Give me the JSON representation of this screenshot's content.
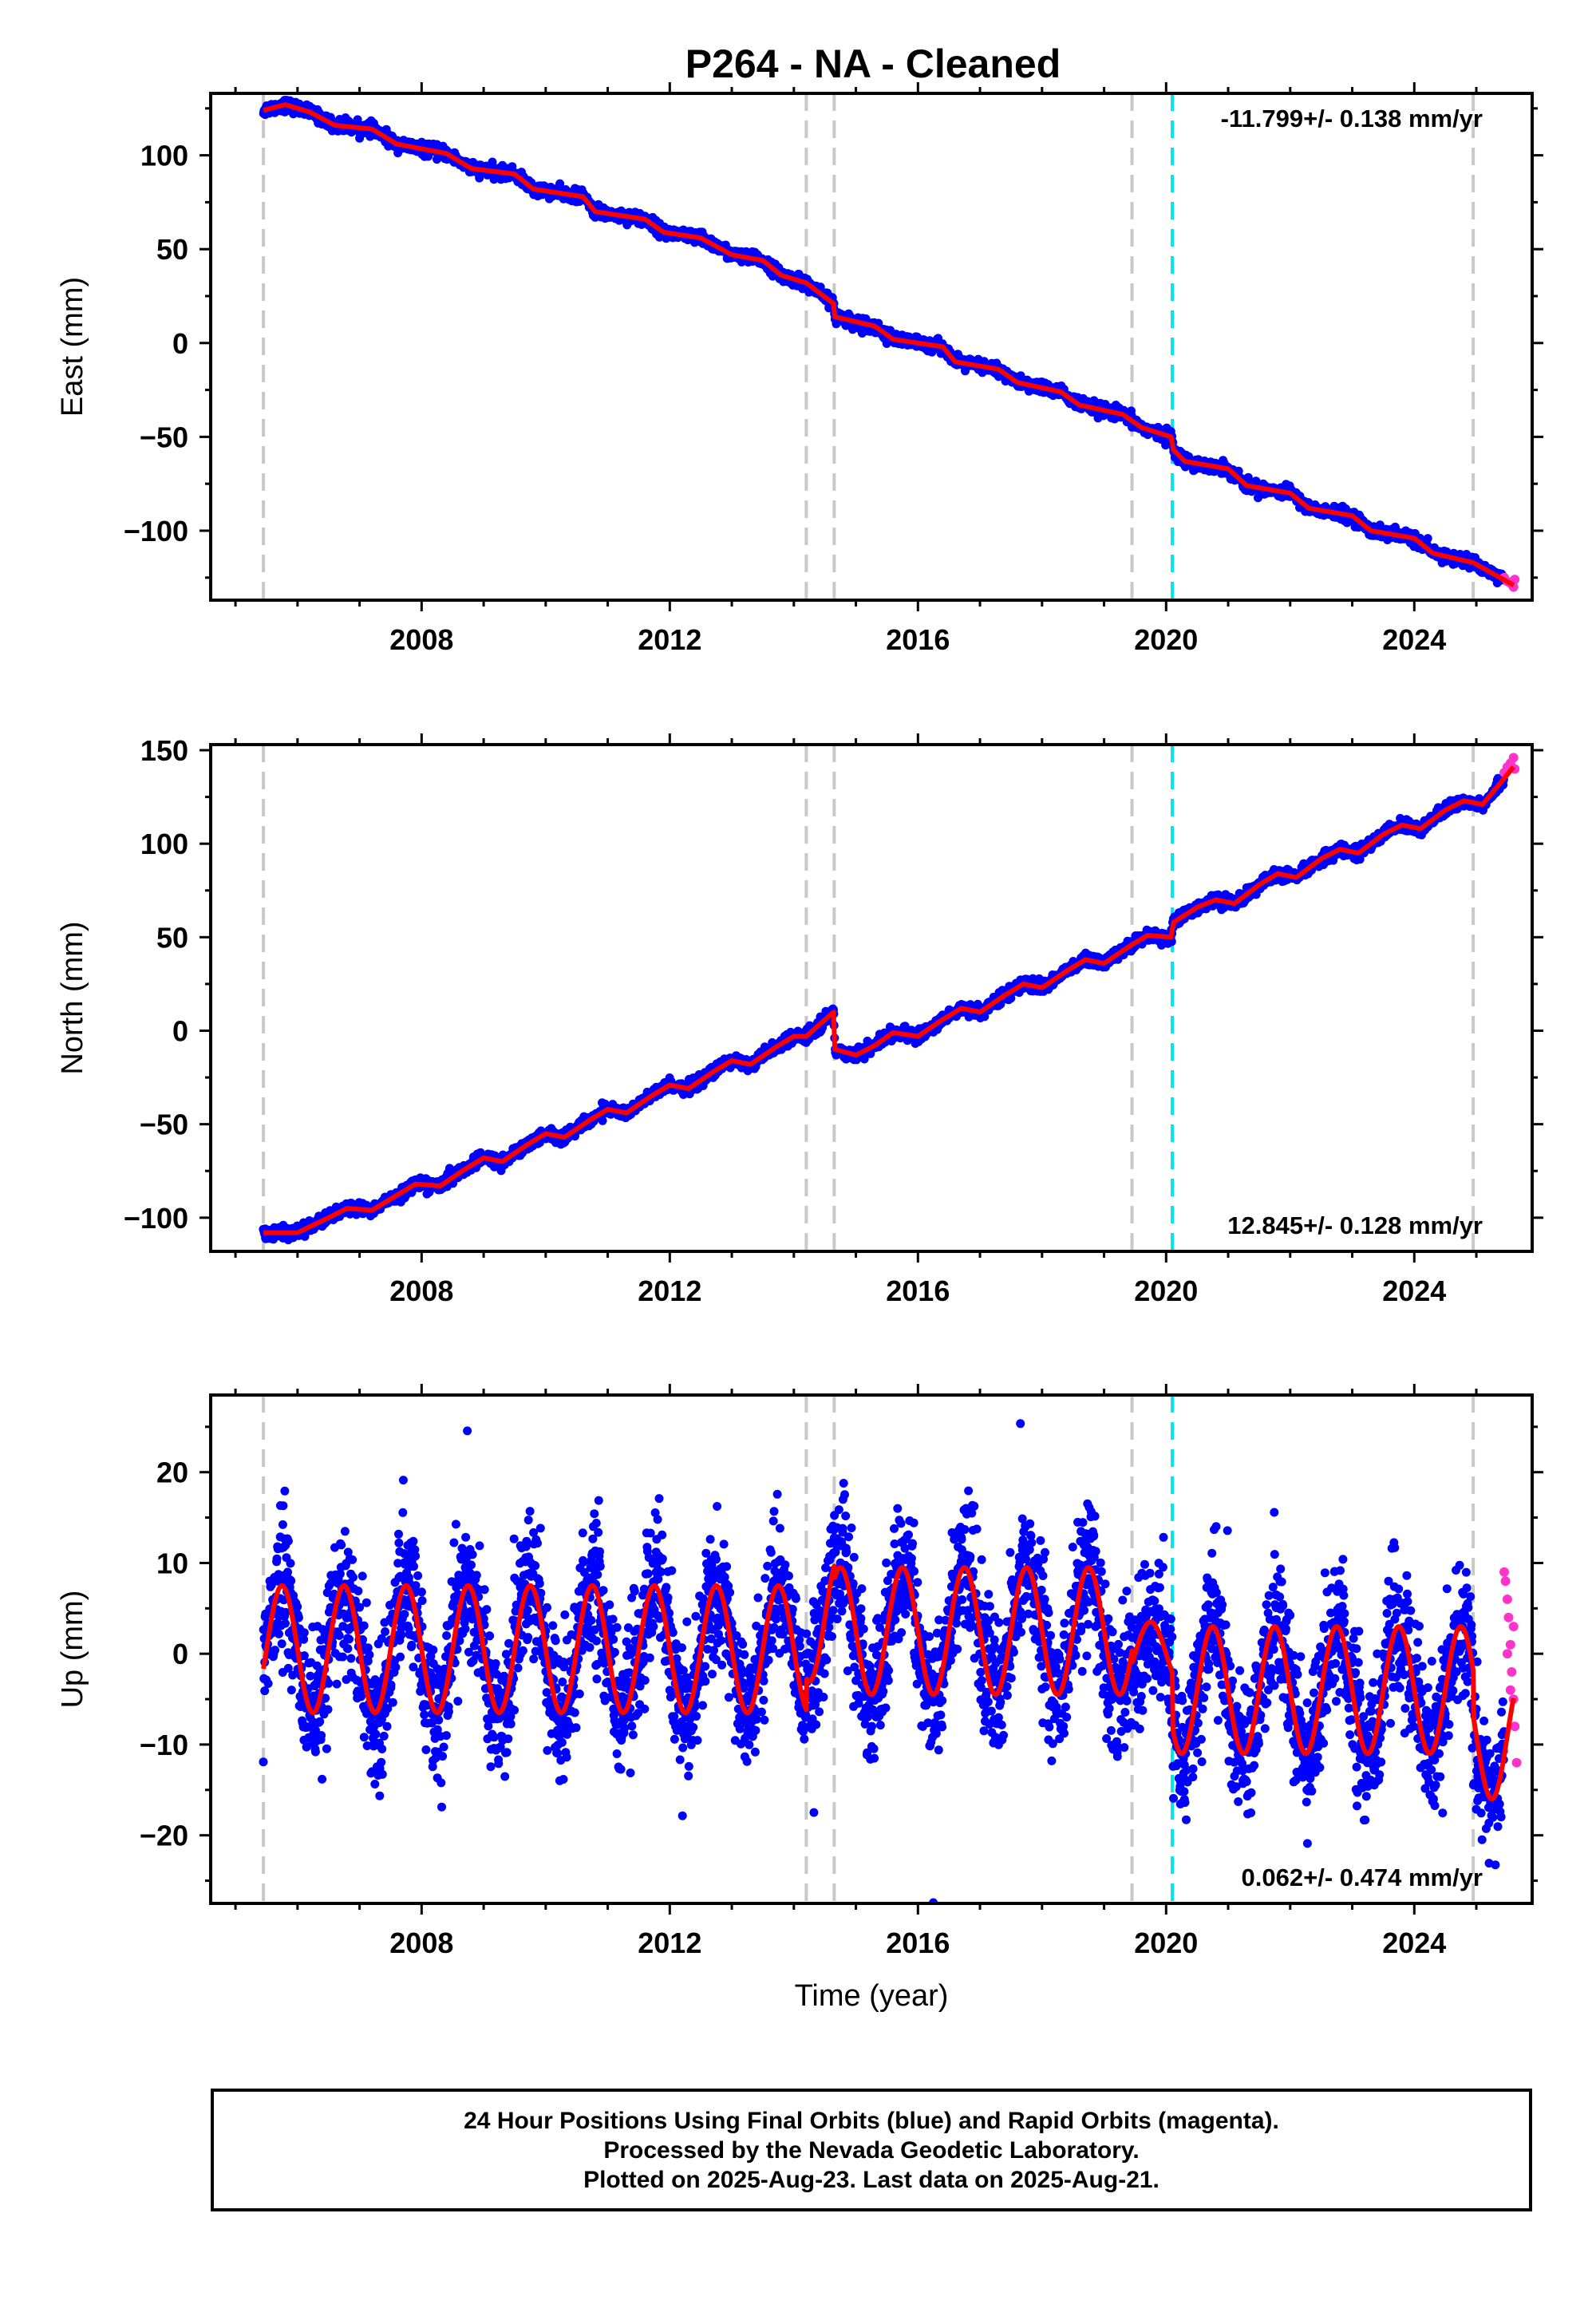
{
  "title": "P264  - NA - Cleaned",
  "footer": {
    "line1": "24 Hour Positions Using Final Orbits (blue) and Rapid Orbits (magenta).",
    "line2": "Processed by the Nevada Geodetic Laboratory.",
    "line3": "Plotted on 2025-Aug-23. Last data on 2025-Aug-21."
  },
  "colors": {
    "final_orbits": "#0000ff",
    "rapid_orbits": "#ff33cc",
    "model_fit": "#ff0000",
    "event_line": "#c8c8c8",
    "event_line_highlight": "#00e5ee"
  },
  "chart_data": [
    {
      "type": "scatter",
      "name": "east",
      "ylabel": "East (mm)",
      "xlabel": "",
      "xlim": [
        2004.6,
        2025.9
      ],
      "ylim": [
        -137,
        133
      ],
      "xticks": [
        2008,
        2012,
        2016,
        2020,
        2024
      ],
      "yticks": [
        -100,
        -50,
        0,
        50,
        100
      ],
      "rate_label": "-11.799+/- 0.138 mm/yr",
      "rate_position": "top-right",
      "event_lines": [
        2005.45,
        2014.2,
        2014.65,
        2019.45,
        2024.95
      ],
      "highlight_lines": [
        2020.1
      ],
      "fit": [
        [
          2005.45,
          124
        ],
        [
          2005.8,
          127
        ],
        [
          2006.2,
          123
        ],
        [
          2006.6,
          116
        ],
        [
          2007.2,
          114
        ],
        [
          2007.6,
          106
        ],
        [
          2008.4,
          101
        ],
        [
          2008.8,
          93
        ],
        [
          2009.5,
          90
        ],
        [
          2009.8,
          82
        ],
        [
          2010.6,
          78
        ],
        [
          2010.8,
          70
        ],
        [
          2011.6,
          66
        ],
        [
          2011.9,
          59
        ],
        [
          2012.5,
          56
        ],
        [
          2013.0,
          47
        ],
        [
          2013.5,
          44
        ],
        [
          2013.8,
          36
        ],
        [
          2014.2,
          32
        ],
        [
          2014.64,
          21
        ],
        [
          2014.66,
          14
        ],
        [
          2015.3,
          9
        ],
        [
          2015.6,
          2
        ],
        [
          2016.4,
          -2
        ],
        [
          2016.6,
          -10
        ],
        [
          2017.3,
          -14
        ],
        [
          2017.6,
          -21
        ],
        [
          2018.3,
          -26
        ],
        [
          2018.6,
          -33
        ],
        [
          2019.3,
          -38
        ],
        [
          2019.6,
          -45
        ],
        [
          2020.08,
          -50
        ],
        [
          2020.12,
          -57
        ],
        [
          2020.3,
          -63
        ],
        [
          2021.0,
          -67
        ],
        [
          2021.3,
          -76
        ],
        [
          2022.0,
          -80
        ],
        [
          2022.3,
          -88
        ],
        [
          2023.0,
          -92
        ],
        [
          2023.3,
          -100
        ],
        [
          2024.0,
          -104
        ],
        [
          2024.3,
          -112
        ],
        [
          2024.95,
          -117
        ],
        [
          2025.6,
          -129
        ]
      ],
      "rapid_points": [
        [
          2025.45,
          -125
        ],
        [
          2025.5,
          -127
        ],
        [
          2025.55,
          -128
        ],
        [
          2025.6,
          -130
        ],
        [
          2025.62,
          -126
        ]
      ]
    },
    {
      "type": "scatter",
      "name": "north",
      "ylabel": "North (mm)",
      "xlabel": "",
      "xlim": [
        2004.6,
        2025.9
      ],
      "ylim": [
        -118,
        153
      ],
      "xticks": [
        2008,
        2012,
        2016,
        2020,
        2024
      ],
      "yticks": [
        -100,
        -50,
        0,
        50,
        100,
        150
      ],
      "rate_label": "12.845+/- 0.128 mm/yr",
      "rate_position": "bottom-right",
      "event_lines": [
        2005.45,
        2014.2,
        2014.65,
        2019.45,
        2024.95
      ],
      "highlight_lines": [
        2020.1
      ],
      "fit": [
        [
          2005.45,
          -108
        ],
        [
          2006.0,
          -108
        ],
        [
          2006.5,
          -100
        ],
        [
          2006.8,
          -95
        ],
        [
          2007.2,
          -96
        ],
        [
          2007.6,
          -88
        ],
        [
          2007.9,
          -82
        ],
        [
          2008.3,
          -83
        ],
        [
          2008.7,
          -74
        ],
        [
          2009.0,
          -68
        ],
        [
          2009.3,
          -70
        ],
        [
          2009.7,
          -61
        ],
        [
          2010.0,
          -55
        ],
        [
          2010.3,
          -57
        ],
        [
          2010.7,
          -48
        ],
        [
          2011.0,
          -42
        ],
        [
          2011.3,
          -44
        ],
        [
          2011.7,
          -35
        ],
        [
          2012.0,
          -29
        ],
        [
          2012.3,
          -31
        ],
        [
          2012.7,
          -22
        ],
        [
          2013.0,
          -16
        ],
        [
          2013.3,
          -18
        ],
        [
          2013.7,
          -9
        ],
        [
          2014.0,
          -3
        ],
        [
          2014.2,
          -3
        ],
        [
          2014.64,
          10
        ],
        [
          2014.66,
          -10
        ],
        [
          2015.0,
          -13
        ],
        [
          2015.3,
          -8
        ],
        [
          2015.6,
          -1
        ],
        [
          2016.0,
          -3
        ],
        [
          2016.4,
          6
        ],
        [
          2016.7,
          12
        ],
        [
          2017.0,
          10
        ],
        [
          2017.4,
          19
        ],
        [
          2017.7,
          25
        ],
        [
          2018.0,
          23
        ],
        [
          2018.4,
          32
        ],
        [
          2018.7,
          38
        ],
        [
          2019.0,
          36
        ],
        [
          2019.4,
          45
        ],
        [
          2019.7,
          51
        ],
        [
          2020.08,
          50
        ],
        [
          2020.12,
          58
        ],
        [
          2020.5,
          66
        ],
        [
          2020.8,
          70
        ],
        [
          2021.1,
          68
        ],
        [
          2021.5,
          78
        ],
        [
          2021.8,
          84
        ],
        [
          2022.1,
          82
        ],
        [
          2022.5,
          92
        ],
        [
          2022.8,
          97
        ],
        [
          2023.1,
          95
        ],
        [
          2023.5,
          105
        ],
        [
          2023.8,
          110
        ],
        [
          2024.1,
          108
        ],
        [
          2024.5,
          118
        ],
        [
          2024.8,
          123
        ],
        [
          2025.1,
          121
        ],
        [
          2025.6,
          141
        ]
      ],
      "rapid_points": [
        [
          2025.45,
          138
        ],
        [
          2025.5,
          141
        ],
        [
          2025.55,
          143
        ],
        [
          2025.6,
          146
        ],
        [
          2025.62,
          140
        ]
      ]
    },
    {
      "type": "scatter",
      "name": "up",
      "ylabel": "Up (mm)",
      "xlabel": "Time (year)",
      "xlim": [
        2004.6,
        2025.9
      ],
      "ylim": [
        -27.5,
        28.5
      ],
      "xticks": [
        2008,
        2012,
        2016,
        2020,
        2024
      ],
      "yticks": [
        -20,
        -10,
        0,
        10,
        20
      ],
      "rate_label": "0.062+/- 0.474 mm/yr",
      "rate_position": "bottom-right",
      "event_lines": [
        2005.45,
        2014.2,
        2014.65,
        2019.45,
        2024.95
      ],
      "highlight_lines": [
        2020.1
      ],
      "fit_model": {
        "period_years": 1.0,
        "phase_peak_year": 2005.75,
        "segments": [
          {
            "start": 2005.45,
            "end": 2014.2,
            "mean": 0.5,
            "amplitude": 7.0
          },
          {
            "start": 2014.2,
            "end": 2014.65,
            "mean": 4.0,
            "amplitude": 7.0
          },
          {
            "start": 2014.65,
            "end": 2019.45,
            "mean": 2.5,
            "amplitude": 7.0
          },
          {
            "start": 2019.45,
            "end": 2020.1,
            "mean": 0.0,
            "amplitude": 3.5
          },
          {
            "start": 2020.1,
            "end": 2024.95,
            "mean": -4.0,
            "amplitude": 7.0
          },
          {
            "start": 2024.95,
            "end": 2025.6,
            "mean": -9.0,
            "amplitude": 7.0
          }
        ]
      },
      "rapid_points": [
        [
          2025.45,
          9
        ],
        [
          2025.47,
          8
        ],
        [
          2025.5,
          6
        ],
        [
          2025.52,
          4
        ],
        [
          2025.55,
          1
        ],
        [
          2025.57,
          -2
        ],
        [
          2025.6,
          -5
        ],
        [
          2025.62,
          -8
        ],
        [
          2025.65,
          -12
        ],
        [
          2025.5,
          0
        ],
        [
          2025.55,
          -4
        ],
        [
          2025.6,
          3
        ]
      ]
    }
  ]
}
